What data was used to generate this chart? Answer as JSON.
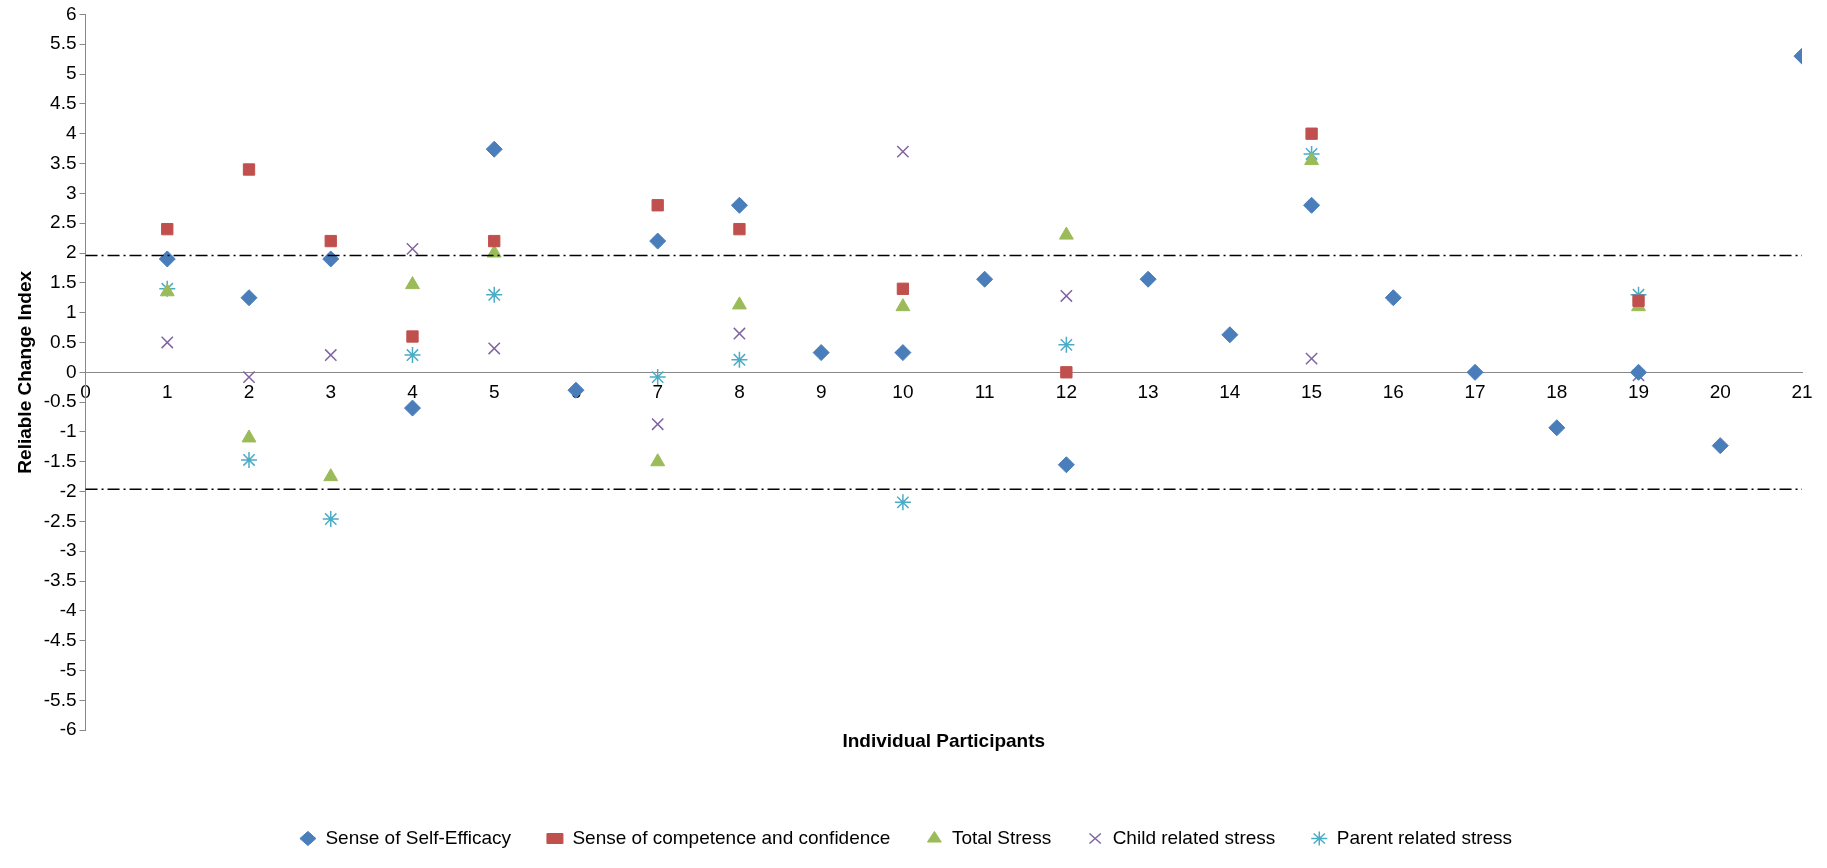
{
  "chart_data": {
    "type": "scatter",
    "xlabel": "Individual Participants",
    "ylabel": "Reliable Change Index",
    "xlim": [
      0,
      21
    ],
    "xticks": [
      0,
      1,
      2,
      3,
      4,
      5,
      6,
      7,
      8,
      9,
      10,
      11,
      12,
      13,
      14,
      15,
      16,
      17,
      18,
      19,
      20,
      21
    ],
    "ylim": [
      -6,
      6
    ],
    "yticks": [
      6,
      5.5,
      5,
      4.5,
      4,
      3.5,
      3,
      2.5,
      2,
      1.5,
      1,
      0.5,
      0,
      -0.5,
      -1,
      -1.5,
      -2,
      -2.5,
      -3,
      -3.5,
      -4,
      -4.5,
      -5,
      -5.5,
      -6
    ],
    "grid": false,
    "legend": "bottom",
    "ref_lines": [
      {
        "axis": "y",
        "value": 1.96,
        "color": "#000000",
        "line_style": "dashdot"
      },
      {
        "axis": "y",
        "value": -1.96,
        "color": "#000000",
        "line_style": "dashdot"
      }
    ],
    "series": [
      {
        "name": "Sense of Self-Efficacy",
        "color": "#4a7ebb",
        "marker": "diamond",
        "x": [
          1,
          2,
          3,
          4,
          5,
          6,
          7,
          8,
          9,
          10,
          11,
          12,
          13,
          14,
          15,
          16,
          17,
          18,
          19,
          20,
          21
        ],
        "values": [
          1.9,
          1.25,
          1.9,
          -0.6,
          3.74,
          -0.3,
          2.2,
          2.8,
          0.33,
          0.33,
          1.56,
          -1.55,
          1.56,
          0.63,
          2.8,
          1.25,
          0,
          -0.93,
          0,
          -1.23,
          5.3
        ]
      },
      {
        "name": "Sense of competence and confidence",
        "color": "#c0504d",
        "marker": "square",
        "x": [
          1,
          2,
          3,
          4,
          5,
          7,
          8,
          10,
          12,
          15,
          19
        ],
        "values": [
          2.4,
          3.4,
          2.2,
          0.6,
          2.2,
          2.8,
          2.4,
          1.4,
          0,
          4.0,
          1.2
        ]
      },
      {
        "name": "Total Stress",
        "color": "#9bbb59",
        "marker": "triangle",
        "x": [
          1,
          2,
          3,
          4,
          5,
          7,
          8,
          10,
          12,
          15,
          19
        ],
        "values": [
          1.35,
          -1.1,
          -1.75,
          1.47,
          2.0,
          -1.5,
          1.13,
          1.1,
          2.3,
          3.55,
          1.1
        ]
      },
      {
        "name": "Child related stress",
        "color": "#8064a2",
        "marker": "cross",
        "x": [
          1,
          2,
          3,
          4,
          5,
          7,
          8,
          10,
          12,
          15,
          19
        ],
        "values": [
          0.5,
          -0.08,
          0.29,
          2.07,
          0.4,
          -0.87,
          0.65,
          3.7,
          1.28,
          0.23,
          -0.05
        ]
      },
      {
        "name": "Parent related stress",
        "color": "#4bacc6",
        "marker": "cross",
        "x": [
          1,
          2,
          3,
          4,
          5,
          7,
          8,
          10,
          12,
          15,
          19
        ],
        "values": [
          1.4,
          -1.47,
          -2.46,
          0.29,
          1.3,
          -0.08,
          0.21,
          -2.18,
          0.46,
          3.66,
          1.3
        ]
      }
    ]
  }
}
